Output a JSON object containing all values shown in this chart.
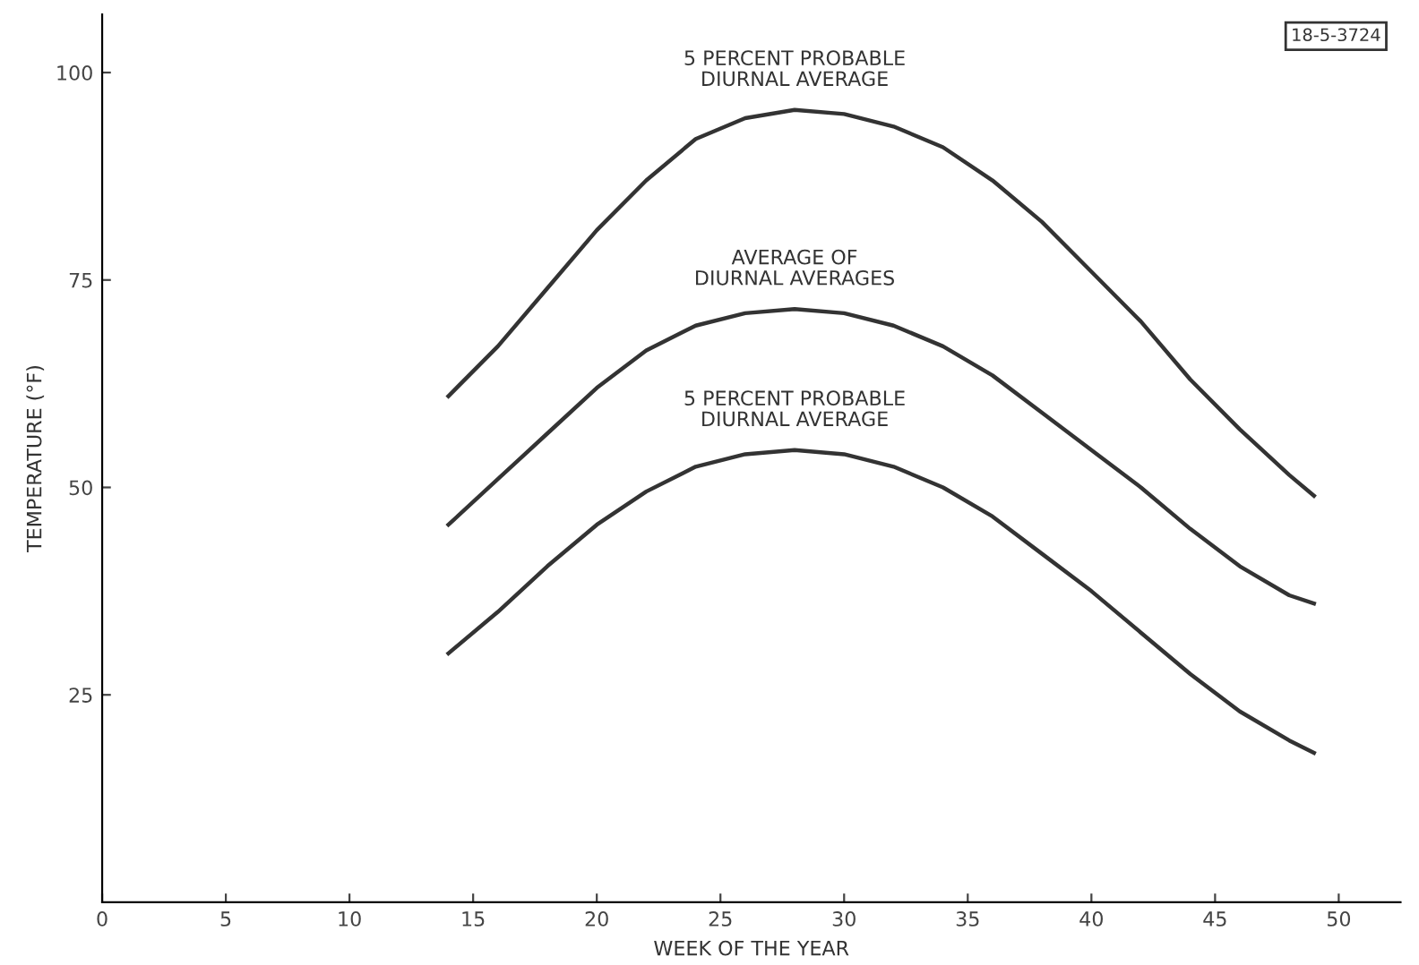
{
  "chart_data": {
    "type": "line",
    "xlabel": "WEEK OF THE YEAR",
    "ylabel": "TEMPERATURE (°F)",
    "x": [
      14,
      16,
      18,
      20,
      22,
      24,
      26,
      28,
      30,
      32,
      34,
      36,
      38,
      40,
      42,
      44,
      46,
      48,
      49
    ],
    "series": [
      {
        "color": "#333333",
        "values": [
          61,
          67,
          74,
          81,
          87,
          92,
          94.5,
          95.5,
          95,
          93.5,
          91,
          87,
          82,
          76,
          70,
          63,
          57,
          51.5,
          49
        ]
      },
      {
        "color": "#333333",
        "values": [
          45.5,
          51,
          56.5,
          62,
          66.5,
          69.5,
          71,
          71.5,
          71,
          69.5,
          67,
          63.5,
          59,
          54.5,
          50,
          45,
          40.5,
          37,
          36
        ]
      },
      {
        "color": "#333333",
        "values": [
          30,
          35,
          40.5,
          45.5,
          49.5,
          52.5,
          54,
          54.5,
          54,
          52.5,
          50,
          46.5,
          42,
          37.5,
          32.5,
          27.5,
          23,
          19.5,
          18
        ]
      }
    ],
    "xlim": [
      0,
      52.5
    ],
    "ylim": [
      0,
      107
    ],
    "xticks": [
      0,
      5,
      10,
      15,
      20,
      25,
      30,
      35,
      40,
      45,
      50
    ],
    "yticks": [
      25,
      50,
      75,
      100
    ],
    "grid": false,
    "legend": false,
    "marker": "none",
    "line_style": "solid",
    "annotations": [
      "5 PERCENT PROBABLE\nDIURNAL AVERAGE",
      "AVERAGE OF\nDIURNAL AVERAGES",
      "5 PERCENT PROBABLE\nDIURNAL AVERAGE",
      "18-5-3724"
    ]
  }
}
